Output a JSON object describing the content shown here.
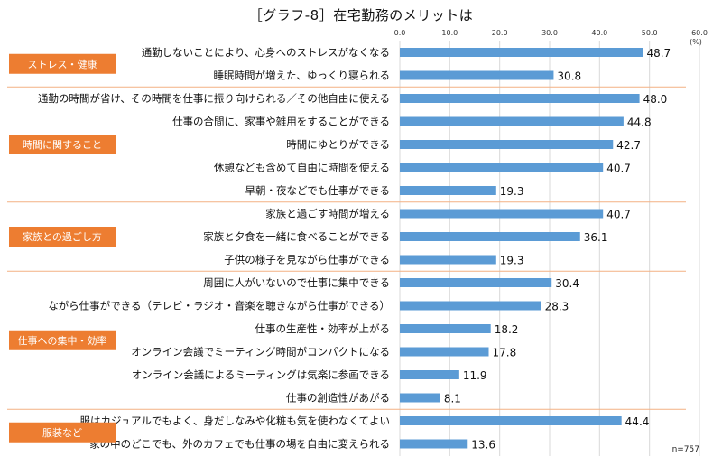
{
  "title": "［グラフ-8］在宅勤務のメリットは",
  "unit_label": "(%)",
  "note": "n=757",
  "colors": {
    "bar": "#5b9bd5",
    "group_box": "#ed7d31",
    "separator": "#f4b183",
    "grid": "#d9d9d9"
  },
  "chart_data": {
    "type": "bar",
    "orientation": "horizontal",
    "title": "［グラフ-8］在宅勤務のメリットは",
    "xlim": [
      0,
      60
    ],
    "ticks": [
      "0.0",
      "10.0",
      "20.0",
      "30.0",
      "40.0",
      "50.0",
      "60.0"
    ],
    "tick_values": [
      0,
      10,
      20,
      30,
      40,
      50,
      60
    ],
    "grid": true,
    "groups": [
      {
        "label": "ストレス・健康",
        "count": 2
      },
      {
        "label": "時間に関すること",
        "count": 5
      },
      {
        "label": "家族との過ごし方",
        "count": 3
      },
      {
        "label": "仕事への集中・効率",
        "count": 6
      },
      {
        "label": "服装など",
        "count": 2
      }
    ],
    "categories": [
      "通勤しないことにより、心身へのストレスがなくなる",
      "睡眠時間が増えた、ゆっくり寝られる",
      "通勤の時間が省け、その時間を仕事に振り向けられる／その他自由に使える",
      "仕事の合間に、家事や雑用をすることができる",
      "時間にゆとりができる",
      "休憩なども含めて自由に時間を使える",
      "早朝・夜などでも仕事ができる",
      "家族と過ごす時間が増える",
      "家族と夕食を一緒に食べることができる",
      "子供の様子を見ながら仕事ができる",
      "周囲に人がいないので仕事に集中できる",
      "ながら仕事ができる（テレビ・ラジオ・音楽を聴きながら仕事ができる）",
      "仕事の生産性・効率が上がる",
      "オンライン会議でミーティング時間がコンパクトになる",
      "オンライン会議によるミーティングは気楽に参画できる",
      "仕事の創造性があがる",
      "服はカジュアルでもよく、身だしなみや化粧も気を使わなくてよい",
      "家の中のどこでも、外のカフェでも仕事の場を自由に変えられる"
    ],
    "values": [
      48.7,
      30.8,
      48.0,
      44.8,
      42.7,
      40.7,
      19.3,
      40.7,
      36.1,
      19.3,
      30.4,
      28.3,
      18.2,
      17.8,
      11.9,
      8.1,
      44.4,
      13.6
    ],
    "value_labels": [
      "48.7",
      "30.8",
      "48.0",
      "44.8",
      "42.7",
      "40.7",
      "19.3",
      "40.7",
      "36.1",
      "19.3",
      "30.4",
      "28.3",
      "18.2",
      "17.8",
      "11.9",
      "8.1",
      "44.4",
      "13.6"
    ]
  }
}
